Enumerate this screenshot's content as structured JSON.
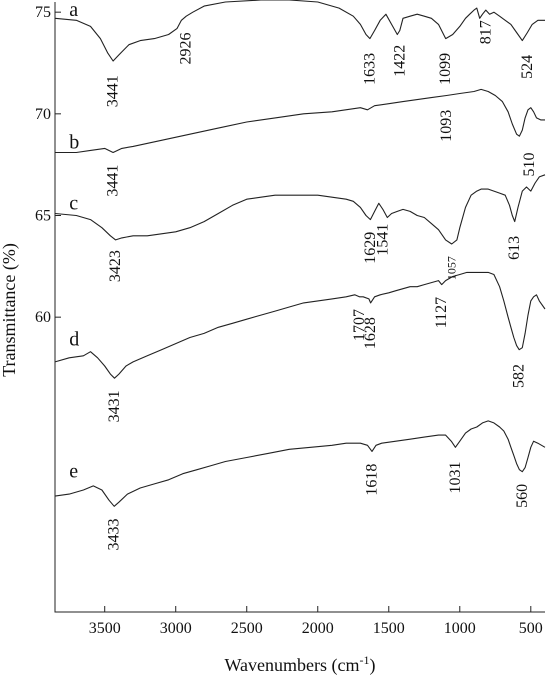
{
  "chart_data": {
    "type": "line",
    "title": "",
    "xlabel": "Wavenumbers (cm",
    "xlabel_sup": "-1",
    "xlabel_close": ")",
    "ylabel": "Transmittance (%)",
    "xlim": [
      3850,
      400
    ],
    "x_reversed": true,
    "ylim": [
      45.5,
      75.5
    ],
    "grid": false,
    "legend": "none",
    "x_ticks": [
      3500,
      3000,
      2500,
      2000,
      1500,
      1000,
      500
    ],
    "y_ticks": [
      60,
      65,
      70,
      75
    ],
    "line_color": "#222222",
    "series": [
      {
        "name": "a",
        "label_xy": [
          3750,
          75.1
        ],
        "x": [
          3850,
          3700,
          3600,
          3530,
          3480,
          3441,
          3400,
          3330,
          3250,
          3150,
          3050,
          2990,
          2960,
          2926,
          2880,
          2800,
          2650,
          2400,
          2200,
          2000,
          1850,
          1750,
          1700,
          1660,
          1633,
          1600,
          1560,
          1520,
          1480,
          1440,
          1422,
          1400,
          1350,
          1300,
          1250,
          1200,
          1150,
          1099,
          1050,
          1000,
          960,
          930,
          900,
          880,
          860,
          840,
          817,
          790,
          760,
          720,
          680,
          640,
          600,
          560,
          524,
          490,
          450,
          400
        ],
        "y": [
          74.7,
          74.6,
          74.3,
          73.7,
          73.0,
          72.6,
          72.9,
          73.4,
          73.6,
          73.7,
          73.9,
          74.2,
          74.6,
          74.8,
          75.0,
          75.3,
          75.5,
          75.6,
          75.6,
          75.5,
          75.2,
          74.8,
          74.4,
          73.9,
          73.7,
          74.1,
          74.6,
          74.9,
          74.4,
          73.9,
          74.1,
          74.7,
          74.8,
          74.9,
          74.8,
          74.7,
          74.4,
          73.7,
          73.9,
          74.3,
          74.7,
          74.9,
          75.1,
          75.2,
          74.7,
          74.9,
          75.1,
          74.9,
          75.0,
          74.8,
          74.6,
          74.4,
          74.0,
          73.6,
          74.0,
          74.4,
          74.6,
          74.6
        ]
      },
      {
        "name": "b",
        "label_xy": [
          3750,
          68.6
        ],
        "x": [
          3850,
          3700,
          3600,
          3500,
          3441,
          3380,
          3300,
          3100,
          2900,
          2700,
          2500,
          2300,
          2100,
          1900,
          1700,
          1650,
          1600,
          1500,
          1400,
          1300,
          1200,
          1093,
          1000,
          900,
          850,
          800,
          750,
          700,
          660,
          630,
          600,
          580,
          560,
          540,
          520,
          500,
          480,
          460,
          430,
          400
        ],
        "y": [
          68.1,
          68.1,
          68.2,
          68.3,
          68.1,
          68.3,
          68.4,
          68.7,
          69.0,
          69.3,
          69.6,
          69.8,
          70.0,
          70.1,
          70.3,
          70.2,
          70.4,
          70.5,
          70.6,
          70.7,
          70.8,
          70.9,
          71.0,
          71.1,
          71.2,
          71.1,
          70.9,
          70.6,
          70.1,
          69.5,
          69.0,
          68.9,
          69.2,
          69.8,
          70.2,
          70.3,
          70.1,
          69.8,
          69.7,
          69.7
        ]
      },
      {
        "name": "c",
        "label_xy": [
          3750,
          65.6
        ],
        "x": [
          3850,
          3700,
          3600,
          3520,
          3460,
          3423,
          3380,
          3300,
          3200,
          3100,
          3000,
          2900,
          2800,
          2700,
          2600,
          2500,
          2400,
          2300,
          2200,
          2000,
          1900,
          1800,
          1750,
          1700,
          1660,
          1629,
          1600,
          1570,
          1541,
          1510,
          1480,
          1440,
          1400,
          1350,
          1300,
          1250,
          1200,
          1150,
          1100,
          1057,
          1020,
          1000,
          960,
          920,
          880,
          850,
          800,
          760,
          720,
          680,
          650,
          630,
          613,
          590,
          560,
          530,
          500,
          470,
          440,
          400
        ],
        "y": [
          65.1,
          65.0,
          64.8,
          64.4,
          64.0,
          63.8,
          63.9,
          64.0,
          64.0,
          64.1,
          64.2,
          64.4,
          64.7,
          65.1,
          65.5,
          65.8,
          65.9,
          66.0,
          66.0,
          66.0,
          65.9,
          65.8,
          65.7,
          65.4,
          65.0,
          64.8,
          65.2,
          65.6,
          65.3,
          64.9,
          65.1,
          65.2,
          65.3,
          65.2,
          65.0,
          64.9,
          64.6,
          64.3,
          63.8,
          63.6,
          63.8,
          64.4,
          65.4,
          66.0,
          66.2,
          66.3,
          66.3,
          66.2,
          66.1,
          66.0,
          65.5,
          65.0,
          64.7,
          65.4,
          66.2,
          66.4,
          66.2,
          66.6,
          66.9,
          67.0
        ]
      },
      {
        "name": "d",
        "label_xy": [
          3750,
          58.9
        ],
        "x": [
          3850,
          3750,
          3650,
          3600,
          3550,
          3500,
          3460,
          3431,
          3400,
          3350,
          3300,
          3200,
          3100,
          3000,
          2900,
          2800,
          2700,
          2600,
          2500,
          2400,
          2300,
          2200,
          2100,
          2000,
          1900,
          1800,
          1740,
          1707,
          1680,
          1640,
          1628,
          1600,
          1560,
          1500,
          1450,
          1400,
          1350,
          1300,
          1250,
          1200,
          1150,
          1127,
          1100,
          1050,
          1000,
          950,
          900,
          850,
          800,
          760,
          720,
          690,
          660,
          640,
          620,
          600,
          582,
          560,
          540,
          520,
          500,
          480,
          460,
          440,
          400
        ],
        "y": [
          57.8,
          58.0,
          58.1,
          58.3,
          58.0,
          57.6,
          57.2,
          57.0,
          57.2,
          57.6,
          57.8,
          58.1,
          58.4,
          58.7,
          59.0,
          59.2,
          59.5,
          59.7,
          59.9,
          60.1,
          60.3,
          60.5,
          60.7,
          60.8,
          60.9,
          61.0,
          61.1,
          61.0,
          61.0,
          60.9,
          60.7,
          61.0,
          61.1,
          61.2,
          61.3,
          61.4,
          61.5,
          61.5,
          61.6,
          61.7,
          61.8,
          61.6,
          61.8,
          62.0,
          62.1,
          62.2,
          62.2,
          62.2,
          62.2,
          62.1,
          61.5,
          60.8,
          60.0,
          59.5,
          59.0,
          58.6,
          58.4,
          58.5,
          59.2,
          60.1,
          60.8,
          61.0,
          61.1,
          60.8,
          60.4
        ]
      },
      {
        "name": "e",
        "label_xy": [
          3750,
          52.4
        ],
        "x": [
          3850,
          3750,
          3650,
          3580,
          3520,
          3470,
          3433,
          3400,
          3340,
          3250,
          3150,
          3050,
          2950,
          2850,
          2750,
          2650,
          2500,
          2350,
          2200,
          2050,
          1900,
          1800,
          1700,
          1650,
          1618,
          1590,
          1550,
          1450,
          1350,
          1250,
          1150,
          1100,
          1060,
          1031,
          1000,
          960,
          920,
          880,
          840,
          800,
          760,
          720,
          690,
          660,
          640,
          620,
          600,
          580,
          560,
          540,
          520,
          500,
          480,
          450,
          400
        ],
        "y": [
          51.2,
          51.3,
          51.5,
          51.7,
          51.5,
          51.0,
          50.7,
          50.9,
          51.3,
          51.6,
          51.8,
          52.0,
          52.3,
          52.5,
          52.7,
          52.9,
          53.1,
          53.3,
          53.5,
          53.6,
          53.7,
          53.8,
          53.8,
          53.7,
          53.4,
          53.7,
          53.8,
          53.9,
          54.0,
          54.1,
          54.2,
          54.2,
          53.9,
          53.6,
          53.9,
          54.3,
          54.5,
          54.6,
          54.8,
          54.9,
          54.8,
          54.6,
          54.4,
          54.0,
          53.6,
          53.2,
          52.8,
          52.5,
          52.4,
          52.6,
          53.1,
          53.6,
          53.9,
          53.8,
          53.6
        ]
      }
    ],
    "annotations": [
      {
        "text": "3441",
        "x": 3441,
        "y": 71.9,
        "vertical": true
      },
      {
        "text": "2926",
        "x": 2926,
        "y": 74.0,
        "vertical": true
      },
      {
        "text": "1633",
        "x": 1633,
        "y": 73.0,
        "vertical": true
      },
      {
        "text": "1422",
        "x": 1422,
        "y": 73.4,
        "vertical": true
      },
      {
        "text": "1099",
        "x": 1099,
        "y": 73.0,
        "vertical": true
      },
      {
        "text": "817",
        "x": 817,
        "y": 74.6,
        "vertical": true
      },
      {
        "text": "524",
        "x": 524,
        "y": 72.9,
        "vertical": true
      },
      {
        "text": "3441",
        "x": 3441,
        "y": 67.5,
        "vertical": true
      },
      {
        "text": "1093",
        "x": 1093,
        "y": 70.2,
        "vertical": true
      },
      {
        "text": "510",
        "x": 510,
        "y": 68.1,
        "vertical": true
      },
      {
        "text": "3423",
        "x": 3423,
        "y": 63.3,
        "vertical": true
      },
      {
        "text": "1629",
        "x": 1629,
        "y": 64.2,
        "vertical": true
      },
      {
        "text": "1541",
        "x": 1541,
        "y": 64.6,
        "vertical": true
      },
      {
        "text": "1057",
        "x": 1057,
        "y": 63.0,
        "vertical": true,
        "small": true
      },
      {
        "text": "613",
        "x": 613,
        "y": 64.0,
        "vertical": true
      },
      {
        "text": "1707",
        "x": 1707,
        "y": 60.4,
        "vertical": true
      },
      {
        "text": "1628",
        "x": 1628,
        "y": 60.0,
        "vertical": true
      },
      {
        "text": "1127",
        "x": 1127,
        "y": 61.0,
        "vertical": true
      },
      {
        "text": "582",
        "x": 582,
        "y": 57.7,
        "vertical": true
      },
      {
        "text": "3431",
        "x": 3431,
        "y": 56.4,
        "vertical": true
      },
      {
        "text": "1618",
        "x": 1618,
        "y": 52.8,
        "vertical": true
      },
      {
        "text": "1031",
        "x": 1031,
        "y": 52.9,
        "vertical": true
      },
      {
        "text": "560",
        "x": 560,
        "y": 51.8,
        "vertical": true
      },
      {
        "text": "3433",
        "x": 3433,
        "y": 50.1,
        "vertical": true
      }
    ]
  }
}
